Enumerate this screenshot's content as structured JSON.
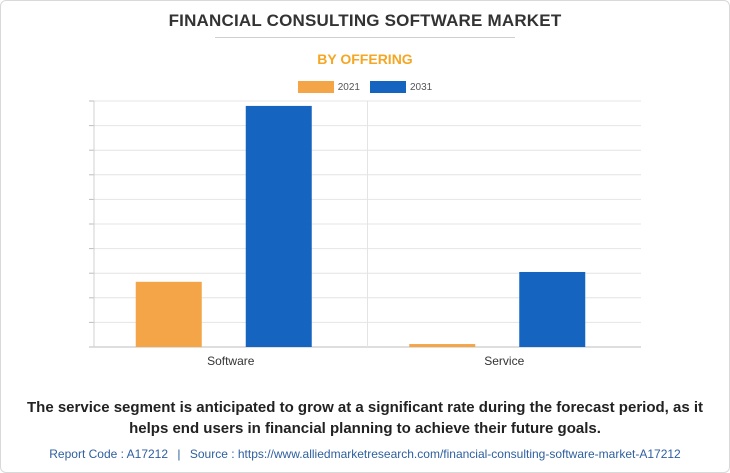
{
  "header": {
    "title": "FINANCIAL CONSULTING SOFTWARE MARKET",
    "subtitle": "BY OFFERING"
  },
  "colors": {
    "subtitle": "#f5a623",
    "series_2021": "#f4a547",
    "series_2031": "#1565c0",
    "grid": "#e4e4e4"
  },
  "chart_data": {
    "type": "bar",
    "categories": [
      "Software",
      "Service"
    ],
    "series": [
      {
        "name": "2021",
        "values": [
          26.5,
          1.2
        ]
      },
      {
        "name": "2031",
        "values": [
          98,
          30.5
        ]
      }
    ],
    "ylim": [
      0,
      100
    ],
    "grid": true,
    "legend": "top-center",
    "xlabel": "",
    "ylabel": ""
  },
  "note": "The service segment is anticipated to grow at a significant rate during the forecast period, as it helps end users in financial planning to achieve their future goals.",
  "footer": {
    "report_code": "Report Code : A17212",
    "separator": "|",
    "source": "Source : https://www.alliedmarketresearch.com/financial-consulting-software-market-A17212"
  }
}
